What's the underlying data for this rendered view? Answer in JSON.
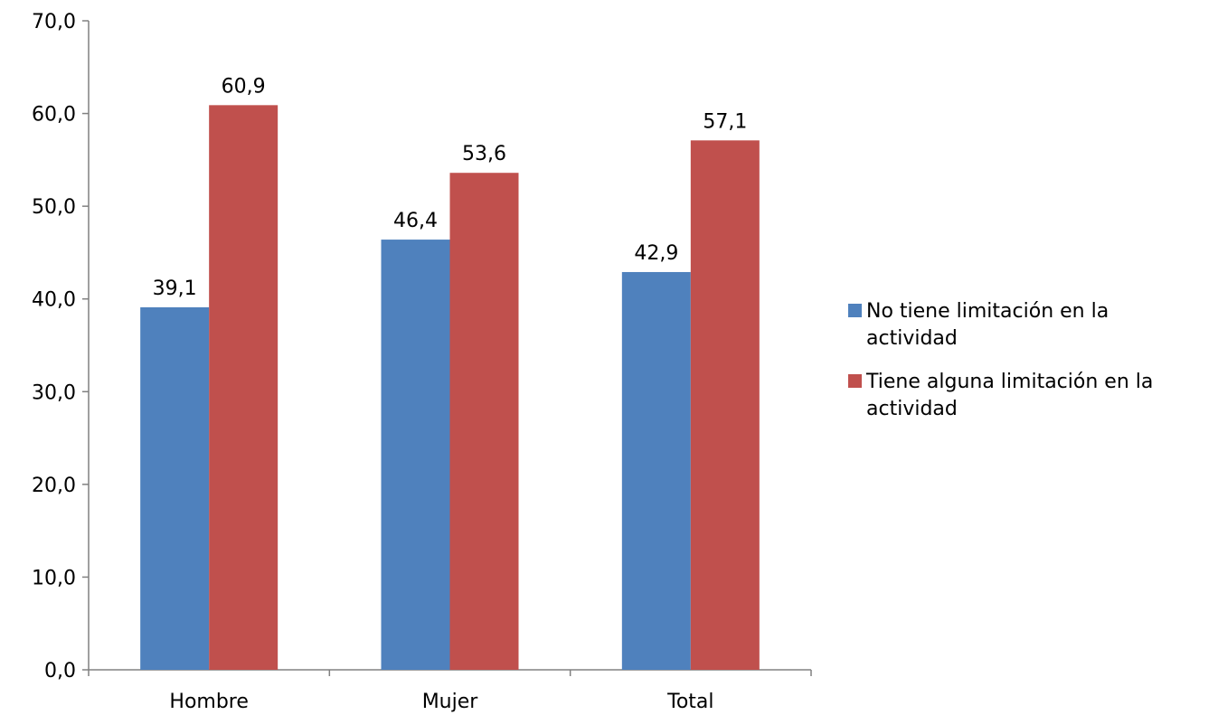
{
  "chart_data": {
    "type": "bar",
    "categories": [
      "Hombre",
      "Mujer",
      "Total"
    ],
    "series": [
      {
        "name": "No tiene limitación en la actividad",
        "legend_lines": [
          "No tiene limitación en la",
          "actividad"
        ],
        "color": "#4F81BD",
        "values": [
          39.1,
          46.4,
          42.9
        ],
        "labels": [
          "39,1",
          "46,4",
          "42,9"
        ]
      },
      {
        "name": "Tiene alguna limitación en la actividad",
        "legend_lines": [
          "Tiene alguna limitación en la",
          "actividad"
        ],
        "color": "#C0504D",
        "values": [
          60.9,
          53.6,
          57.1
        ],
        "labels": [
          "60,9",
          "53,6",
          "57,1"
        ]
      }
    ],
    "ylim": [
      0,
      70
    ],
    "yticks": [
      0,
      10,
      20,
      30,
      40,
      50,
      60,
      70
    ],
    "ytick_labels": [
      "0,0",
      "10,0",
      "20,0",
      "30,0",
      "40,0",
      "50,0",
      "60,0",
      "70,0"
    ],
    "title": "",
    "xlabel": "",
    "ylabel": "",
    "grid": false,
    "legend_position": "right",
    "axis_color": "#808080"
  }
}
